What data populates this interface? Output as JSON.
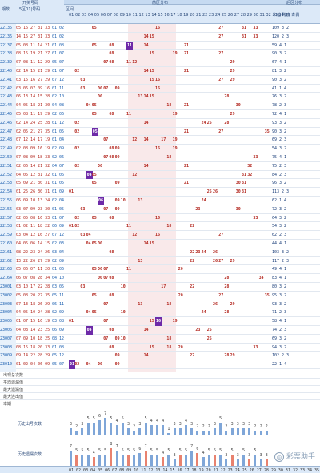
{
  "header": {
    "period": "期数",
    "group": "开奖号码",
    "prize": "5区01|号码",
    "zone": "区间",
    "front_zone": "前区分布",
    "back_zone": "后区分布",
    "red_cols": "01 02 03 04 05 06 07 08 09 10 11 12 13 14 15 16 17 18 19 20 21 22 23 24 25 26 27 28 29 30 31 32 33 34 35",
    "stat_cols": "和值 跨度 奇偶"
  },
  "rows": [
    {
      "p": "22135",
      "f": "05 16 27 31 33",
      "b": "01 02",
      "marks": [],
      "s": "109 3 2"
    },
    {
      "p": "22136",
      "f": "14 15 27 31 33",
      "b": "01 02",
      "marks": [],
      "s": "120 2 3"
    },
    {
      "p": "22137",
      "f": "05 08 11 14 21",
      "b": "01 08",
      "marks": [
        11
      ],
      "s": "59 4 1"
    },
    {
      "p": "22138",
      "f": "08 15 19 21 27",
      "b": "01 07",
      "marks": [],
      "s": "90 3 2"
    },
    {
      "p": "22139",
      "f": "07 08 11 12 29",
      "b": "05 07",
      "marks": [],
      "s": "67 4 1"
    },
    {
      "p": "22140",
      "f": "02 14 15 21 29",
      "b": "01 07",
      "marks": [],
      "s": "81 3 2"
    },
    {
      "p": "22141",
      "f": "03 15 16 27 29",
      "b": "07 12",
      "marks": [],
      "s": "90 3 2"
    },
    {
      "p": "22142",
      "f": "03 06 07 09 16",
      "b": "01 11",
      "marks": [],
      "s": "41 1 4"
    },
    {
      "p": "22143",
      "f": "06 13 14 15 28",
      "b": "02 10",
      "marks": [],
      "s": "76 3 2"
    },
    {
      "p": "22144",
      "f": "04 05 18 21 30",
      "b": "04 08",
      "marks": [],
      "s": "78 2 3"
    },
    {
      "p": "22145",
      "f": "05 08 11 19 29",
      "b": "02 06",
      "marks": [],
      "s": "72 4 1"
    },
    {
      "p": "22146",
      "f": "02 14 24 25 28",
      "b": "01 12",
      "marks": [],
      "s": "93 3 2"
    },
    {
      "p": "22147",
      "f": "02 05 21 27 35",
      "b": "01 05",
      "marks": [
        5
      ],
      "s": "90 3 2"
    },
    {
      "p": "22148",
      "f": "07 12 14 17 19",
      "b": "01 04",
      "marks": [],
      "s": "69 2 3"
    },
    {
      "p": "22149",
      "f": "02 08 09 16 19",
      "b": "02 09",
      "marks": [],
      "s": "54 3 2"
    },
    {
      "p": "22150",
      "f": "07 08 09 18 33",
      "b": "02 06",
      "marks": [],
      "s": "75 4 1"
    },
    {
      "p": "22151",
      "f": "02 06 14 21 32",
      "b": "04 07",
      "marks": [],
      "s": "75 2 3"
    },
    {
      "p": "22152",
      "f": "04 05 12 31 32",
      "b": "01 06",
      "marks": [
        4
      ],
      "s": "84 2 3"
    },
    {
      "p": "22153",
      "f": "05 09 21 30 31",
      "b": "01 05",
      "marks": [],
      "s": "96 3 2"
    },
    {
      "p": "22154",
      "f": "01 25 26 30 31",
      "b": "01 09",
      "marks": [],
      "s": "113 2 3"
    },
    {
      "p": "22155",
      "f": "06 09 10 13 24",
      "b": "02 04",
      "marks": [
        6
      ],
      "s": "62 1 4"
    },
    {
      "p": "22156",
      "f": "03 07 09 23 30",
      "b": "01 05",
      "marks": [],
      "s": "72 3 2"
    },
    {
      "p": "22157",
      "f": "02 05 08 16 33",
      "b": "01 07",
      "marks": [],
      "s": "64 3 2"
    },
    {
      "p": "22158",
      "f": "01 02 11 18 22",
      "b": "06 09",
      "marks": [],
      "s": "54 3 2"
    },
    {
      "p": "22159",
      "f": "03 04 12 16 27",
      "b": "07 12",
      "marks": [],
      "s": "62 2 3"
    },
    {
      "p": "22160",
      "f": "04 05 06 14 15",
      "b": "02 03",
      "marks": [],
      "s": "44 4 1"
    },
    {
      "p": "22161",
      "f": "08 22 23 24 26",
      "b": "03 04",
      "marks": [],
      "s": "103 3 2"
    },
    {
      "p": "22162",
      "f": "13 22 26 27 29",
      "b": "02 09",
      "marks": [],
      "s": "117 2 3"
    },
    {
      "p": "22163",
      "f": "05 06 07 11 20",
      "b": "01 06",
      "marks": [],
      "s": "49 4 1"
    },
    {
      "p": "22164",
      "f": "06 07 08 28 34",
      "b": "04 10",
      "marks": [],
      "s": "83 4 1"
    },
    {
      "p": "23001",
      "f": "03 10 17 22 28",
      "b": "03 05",
      "marks": [],
      "s": "80 3 2"
    },
    {
      "p": "23002",
      "f": "05 08 20 27 35",
      "b": "05 11",
      "marks": [],
      "s": "95 3 2"
    },
    {
      "p": "23003",
      "f": "07 13 18 26 29",
      "b": "06 11",
      "marks": [],
      "s": "93 3 2"
    },
    {
      "p": "23004",
      "f": "04 05 10 24 28",
      "b": "02 09",
      "marks": [],
      "s": "71 2 3"
    },
    {
      "p": "23005",
      "f": "01 07 15 16 19",
      "b": "03 08",
      "marks": [
        16
      ],
      "s": "58 4 1"
    },
    {
      "p": "23006",
      "f": "04 08 14 23 25",
      "b": "06 09",
      "marks": [
        4
      ],
      "s": "74 2 3"
    },
    {
      "p": "23007",
      "f": "07 09 10 18 25",
      "b": "08 12",
      "marks": [],
      "s": "69 3 2"
    },
    {
      "p": "23008",
      "f": "08 15 18 20 33",
      "b": "01 08",
      "marks": [],
      "s": "94 3 2"
    },
    {
      "p": "23009",
      "f": "09 14 22 28 29",
      "b": "05 12",
      "marks": [],
      "s": "102 2 3"
    },
    {
      "p": "23010",
      "f": "01 02 04 06 09",
      "b": "05 07",
      "marks": [
        1
      ],
      "s": "22 1 4"
    }
  ],
  "footer": {
    "rows": [
      "出现总次数",
      "平均遗漏值",
      "最大遗漏值",
      "最大连出值",
      "本期"
    ],
    "watermark": "彩票助手"
  },
  "charts": [
    {
      "label": "历史出号次数",
      "values": [
        3,
        2,
        3,
        5,
        5,
        6,
        7,
        5,
        4,
        5,
        3,
        2,
        3,
        5,
        4,
        4,
        4,
        1,
        3,
        3,
        4,
        3,
        2,
        2,
        2,
        3,
        5,
        2,
        3,
        3,
        3,
        3,
        2,
        2,
        2
      ]
    },
    {
      "label": "历史遗漏次数",
      "values": [
        7,
        5,
        5,
        5,
        4,
        5,
        5,
        8,
        7,
        5,
        5,
        5,
        6,
        7,
        5,
        5,
        4,
        5,
        3,
        5,
        5,
        7,
        6,
        4,
        5,
        5,
        5,
        3,
        5,
        3,
        5,
        3,
        5,
        3,
        3
      ]
    }
  ],
  "colors": {
    "red": "#b3261e",
    "blue": "#1b5fb0",
    "purple": "#6d2aa8",
    "pink_zone": "#f9e9ea"
  }
}
